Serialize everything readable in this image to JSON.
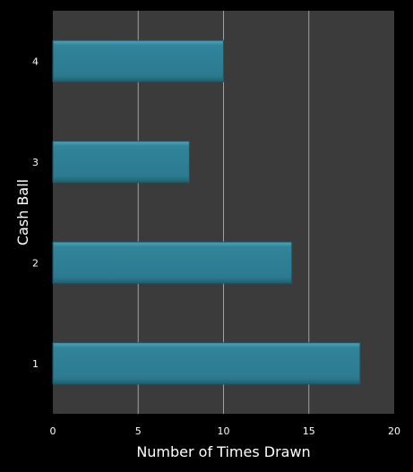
{
  "chart_data": {
    "type": "bar",
    "orientation": "horizontal",
    "categories": [
      "1",
      "2",
      "3",
      "4"
    ],
    "values": [
      18,
      14,
      8,
      10
    ],
    "title": "",
    "xlabel": "Number of Times Drawn",
    "ylabel": "Cash Ball",
    "xlim": [
      0,
      20
    ],
    "xticks": [
      "0",
      "5",
      "10",
      "15",
      "20"
    ],
    "grid": "vertical",
    "legend": "none",
    "colors": {
      "background": "#000000",
      "plot_area": "#3b3b3b",
      "bar": "#31849b",
      "bar_edge": "#1c5666",
      "grid": "#a0a0a0",
      "text": "#ffffff"
    }
  }
}
